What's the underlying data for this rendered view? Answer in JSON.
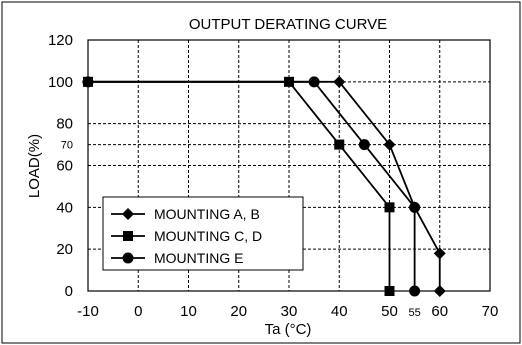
{
  "chart_data": {
    "type": "line",
    "title": "OUTPUT DERATING CURVE",
    "xlabel": "Ta (°C)",
    "ylabel": "LOAD(%)",
    "xlim": [
      -10,
      70
    ],
    "ylim": [
      0,
      120
    ],
    "x_ticks": [
      "-10",
      "0",
      "10",
      "20",
      "30",
      "40",
      "50",
      "60",
      "70"
    ],
    "y_ticks": [
      "0",
      "20",
      "40",
      "60",
      "80",
      "100",
      "120"
    ],
    "extra_x_tick": "55",
    "extra_y_tick": "70",
    "grid": true,
    "legend_placement": "bottom-left",
    "series": [
      {
        "name": "MOUNTING A, B",
        "marker": "diamond",
        "x": [
          -10,
          40,
          50,
          55,
          60,
          60
        ],
        "y": [
          100,
          100,
          70,
          40,
          18,
          0
        ]
      },
      {
        "name": "MOUNTING C, D",
        "marker": "square",
        "x": [
          -10,
          30,
          40,
          50,
          50
        ],
        "y": [
          100,
          100,
          70,
          40,
          0
        ]
      },
      {
        "name": "MOUNTING E",
        "marker": "circle",
        "x": [
          -10,
          35,
          45,
          55,
          55
        ],
        "y": [
          100,
          100,
          70,
          40,
          0
        ]
      }
    ]
  }
}
